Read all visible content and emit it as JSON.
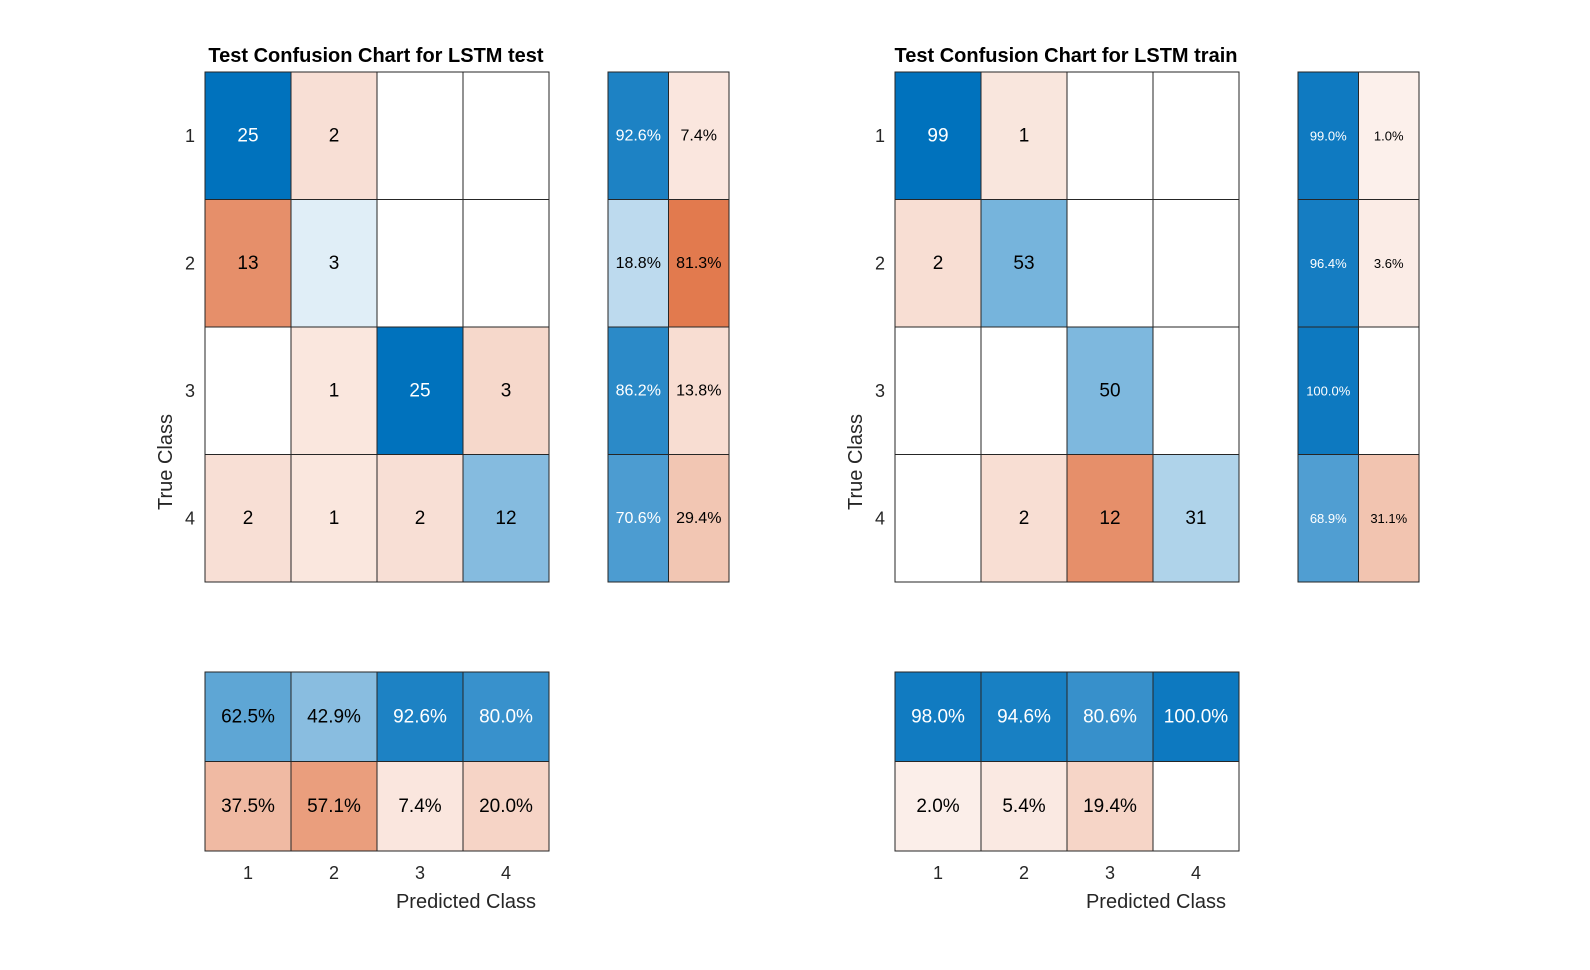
{
  "chart_data": [
    {
      "type": "heatmap",
      "title": "Test Confusion Chart for LSTM test",
      "xlabel": "Predicted Class",
      "ylabel": "True Class",
      "classes": [
        "1",
        "2",
        "3",
        "4"
      ],
      "matrix": [
        [
          25,
          2,
          null,
          null
        ],
        [
          13,
          3,
          null,
          null
        ],
        [
          null,
          1,
          25,
          3
        ],
        [
          2,
          1,
          2,
          12
        ]
      ],
      "row_summary": [
        [
          "92.6%",
          "7.4%"
        ],
        [
          "18.8%",
          "81.3%"
        ],
        [
          "86.2%",
          "13.8%"
        ],
        [
          "70.6%",
          "29.4%"
        ]
      ],
      "row_summary_values": [
        [
          92.6,
          7.4
        ],
        [
          18.8,
          81.3
        ],
        [
          86.2,
          13.8
        ],
        [
          70.6,
          29.4
        ]
      ],
      "column_summary": [
        [
          "62.5%",
          "42.9%",
          "92.6%",
          "80.0%"
        ],
        [
          "37.5%",
          "57.1%",
          "7.4%",
          "20.0%"
        ]
      ],
      "column_summary_values": [
        [
          62.5,
          42.9,
          92.6,
          80.0
        ],
        [
          37.5,
          57.1,
          7.4,
          20.0
        ]
      ]
    },
    {
      "type": "heatmap",
      "title": "Test Confusion Chart for LSTM train",
      "xlabel": "Predicted Class",
      "ylabel": "True Class",
      "classes": [
        "1",
        "2",
        "3",
        "4"
      ],
      "matrix": [
        [
          99,
          1,
          null,
          null
        ],
        [
          2,
          53,
          null,
          null
        ],
        [
          null,
          null,
          50,
          null
        ],
        [
          null,
          2,
          12,
          31
        ]
      ],
      "row_summary": [
        [
          "99.0%",
          "1.0%"
        ],
        [
          "96.4%",
          "3.6%"
        ],
        [
          "100.0%",
          ""
        ],
        [
          "68.9%",
          "31.1%"
        ]
      ],
      "row_summary_values": [
        [
          99.0,
          1.0
        ],
        [
          96.4,
          3.6
        ],
        [
          100.0,
          0
        ],
        [
          68.9,
          31.1
        ]
      ],
      "column_summary": [
        [
          "98.0%",
          "94.6%",
          "80.6%",
          "100.0%"
        ],
        [
          "2.0%",
          "5.4%",
          "19.4%",
          ""
        ]
      ],
      "column_summary_values": [
        [
          98.0,
          94.6,
          80.6,
          100.0
        ],
        [
          2.0,
          5.4,
          19.4,
          0
        ]
      ]
    }
  ],
  "colors": {
    "blue": "#0072bd",
    "orange": "#d95319",
    "border": "#262626",
    "light_text": "#ffffff",
    "dark_text": "#000000"
  }
}
